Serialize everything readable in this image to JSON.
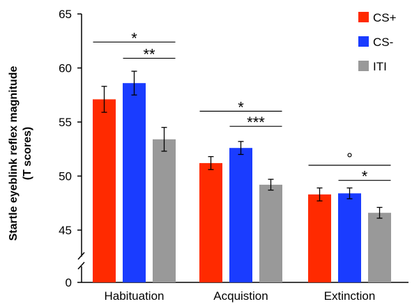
{
  "chart_data": {
    "type": "bar",
    "ylabel_lines": [
      "Startle eyeblink reflex magnitude",
      "(T scores)"
    ],
    "categories": [
      "Habituation",
      "Acquistion",
      "Extinction"
    ],
    "series": [
      {
        "name": "CS+",
        "color": "#ff2a00",
        "values": [
          57.1,
          51.2,
          48.3
        ],
        "errors": [
          1.2,
          0.6,
          0.6
        ]
      },
      {
        "name": "CS-",
        "color": "#1a3cff",
        "values": [
          58.6,
          52.6,
          48.4
        ],
        "errors": [
          1.1,
          0.6,
          0.5
        ]
      },
      {
        "name": "ITI",
        "color": "#999999",
        "values": [
          53.4,
          49.2,
          46.6
        ],
        "errors": [
          1.1,
          0.5,
          0.5
        ]
      }
    ],
    "yticks": [
      "0",
      "45",
      "50",
      "55",
      "60",
      "65"
    ],
    "ylim": [
      45,
      65
    ],
    "axis_break": true,
    "legend_position": "top-right",
    "significance": [
      {
        "category": 0,
        "from": "CS+",
        "to": "ITI",
        "label": "*",
        "at": 62.4
      },
      {
        "category": 0,
        "from": "CS-",
        "to": "ITI",
        "label": "**",
        "at": 60.9
      },
      {
        "category": 1,
        "from": "CS+",
        "to": "ITI",
        "label": "*",
        "at": 56.0
      },
      {
        "category": 1,
        "from": "CS-",
        "to": "ITI",
        "label": "***",
        "at": 54.6
      },
      {
        "category": 2,
        "from": "CS+",
        "to": "ITI",
        "label": "°",
        "at": 51.0
      },
      {
        "category": 2,
        "from": "CS-",
        "to": "ITI",
        "label": "*",
        "at": 49.6
      }
    ]
  }
}
